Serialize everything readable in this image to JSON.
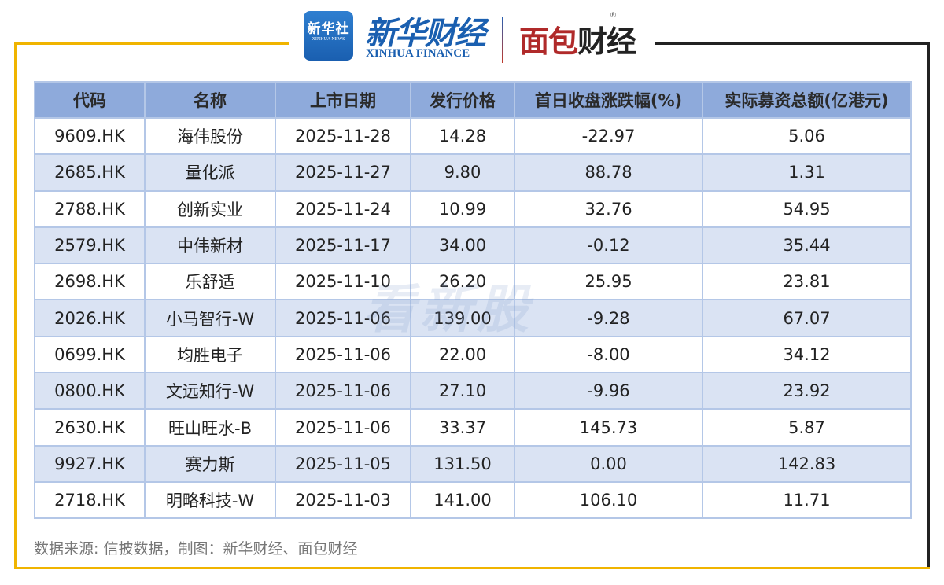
{
  "header": {
    "xinhua_news_logo_cn": "新华社",
    "xinhua_news_logo_en": "XINHUA NEWS",
    "xinhua_finance_cn": "新华财经",
    "xinhua_finance_en": "XINHUA FINANCE",
    "mianbao_logo_red": "面包",
    "mianbao_logo_black": "财经",
    "registered_mark": "®"
  },
  "table": {
    "columns": [
      "代码",
      "名称",
      "上市日期",
      "发行价格",
      "首日收盘涨跌幅(%)",
      "实际募资总额(亿港元)"
    ],
    "rows": [
      [
        "9609.HK",
        "海伟股份",
        "2025-11-28",
        "14.28",
        "-22.97",
        "5.06"
      ],
      [
        "2685.HK",
        "量化派",
        "2025-11-27",
        "9.80",
        "88.78",
        "1.31"
      ],
      [
        "2788.HK",
        "创新实业",
        "2025-11-24",
        "10.99",
        "32.76",
        "54.95"
      ],
      [
        "2579.HK",
        "中伟新材",
        "2025-11-17",
        "34.00",
        "-0.12",
        "35.44"
      ],
      [
        "2698.HK",
        "乐舒适",
        "2025-11-10",
        "26.20",
        "25.95",
        "23.81"
      ],
      [
        "2026.HK",
        "小马智行-W",
        "2025-11-06",
        "139.00",
        "-9.28",
        "67.07"
      ],
      [
        "0699.HK",
        "均胜电子",
        "2025-11-06",
        "22.00",
        "-8.00",
        "34.12"
      ],
      [
        "0800.HK",
        "文远知行-W",
        "2025-11-06",
        "27.10",
        "-9.96",
        "23.92"
      ],
      [
        "2630.HK",
        "旺山旺水-B",
        "2025-11-06",
        "33.37",
        "145.73",
        "5.87"
      ],
      [
        "9927.HK",
        "赛力斯",
        "2025-11-05",
        "131.50",
        "0.00",
        "142.83"
      ],
      [
        "2718.HK",
        "明略科技-W",
        "2025-11-03",
        "141.00",
        "106.10",
        "11.71"
      ]
    ]
  },
  "watermark": "看新股",
  "footer": {
    "source": "数据来源: 信披数据，制图：新华财经、面包财经"
  },
  "colors": {
    "header_bg": "#8eaadb",
    "alt_row_bg": "#dae3f3",
    "border": "#b4c7e7",
    "frame_yellow": "#f0b400",
    "frame_dark": "#222222"
  }
}
